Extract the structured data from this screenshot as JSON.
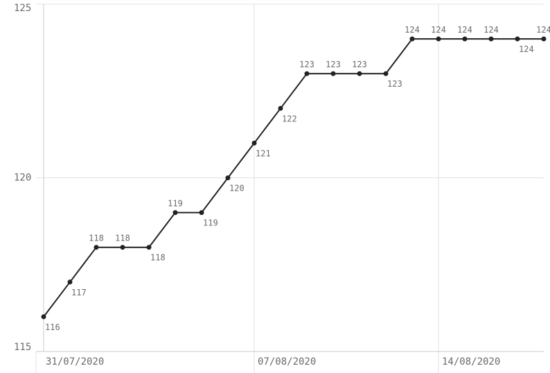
{
  "chart_data": {
    "type": "line",
    "title": "",
    "xlabel": "",
    "ylabel": "",
    "ylim": [
      115,
      125
    ],
    "y_ticks": [
      "115",
      "120",
      "125"
    ],
    "x_ticks": [
      "31/07/2020",
      "07/08/2020",
      "14/08/2020"
    ],
    "grid": true,
    "series": [
      {
        "color": "#222222",
        "points": [
          {
            "date": "30/07/2020",
            "value": 116
          },
          {
            "date": "31/07/2020",
            "value": 117
          },
          {
            "date": "01/08/2020",
            "value": 118
          },
          {
            "date": "02/08/2020",
            "value": 118
          },
          {
            "date": "03/08/2020",
            "value": 118
          },
          {
            "date": "04/08/2020",
            "value": 119
          },
          {
            "date": "05/08/2020",
            "value": 119
          },
          {
            "date": "06/08/2020",
            "value": 120
          },
          {
            "date": "07/08/2020",
            "value": 121
          },
          {
            "date": "08/08/2020",
            "value": 122
          },
          {
            "date": "09/08/2020",
            "value": 123
          },
          {
            "date": "10/08/2020",
            "value": 123
          },
          {
            "date": "11/08/2020",
            "value": 123
          },
          {
            "date": "12/08/2020",
            "value": 123
          },
          {
            "date": "13/08/2020",
            "value": 124
          },
          {
            "date": "14/08/2020",
            "value": 124
          },
          {
            "date": "15/08/2020",
            "value": 124
          },
          {
            "date": "16/08/2020",
            "value": 124
          },
          {
            "date": "17/08/2020",
            "value": 124
          },
          {
            "date": "18/08/2020",
            "value": 124
          }
        ]
      }
    ]
  }
}
